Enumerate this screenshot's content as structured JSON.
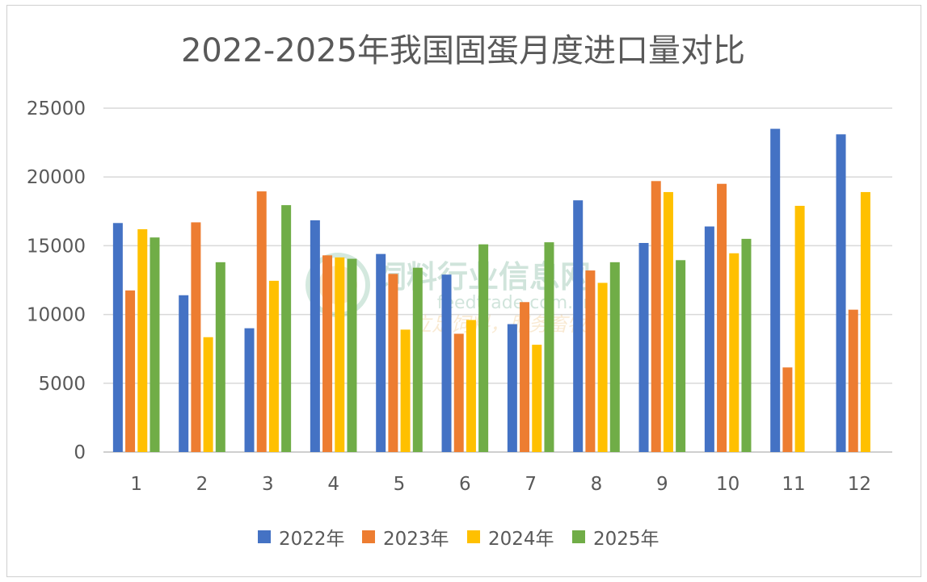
{
  "watermark": {
    "line1": "饲料行业信息网",
    "line2": "feedtrade.com.cn",
    "line3": "立足饲料，服务畜牧"
  },
  "chart_data": {
    "type": "bar",
    "title": "2022-2025年我国固蛋月度进口量对比",
    "xlabel": "",
    "ylabel": "",
    "ylim": [
      0,
      25000
    ],
    "yticks": [
      0,
      5000,
      10000,
      15000,
      20000,
      25000
    ],
    "grid": true,
    "legend": "bottom",
    "categories": [
      "1",
      "2",
      "3",
      "4",
      "5",
      "6",
      "7",
      "8",
      "9",
      "10",
      "11",
      "12"
    ],
    "series": [
      {
        "name": "2022年",
        "color": "#4472C4",
        "values": [
          16650,
          11400,
          9000,
          16850,
          14400,
          12900,
          9300,
          18300,
          15200,
          16400,
          23500,
          23100
        ]
      },
      {
        "name": "2023年",
        "color": "#ED7D31",
        "values": [
          11750,
          16700,
          18950,
          14300,
          12950,
          8600,
          10900,
          13200,
          19700,
          19500,
          6150,
          10350
        ]
      },
      {
        "name": "2024年",
        "color": "#FFC000",
        "values": [
          16200,
          8350,
          12450,
          14150,
          8900,
          9600,
          7800,
          12300,
          18900,
          14450,
          17900,
          18900
        ]
      },
      {
        "name": "2025年",
        "color": "#70AD47",
        "values": [
          15600,
          13800,
          17950,
          14050,
          13400,
          15100,
          15250,
          13800,
          13950,
          15500,
          null,
          null
        ]
      }
    ]
  }
}
